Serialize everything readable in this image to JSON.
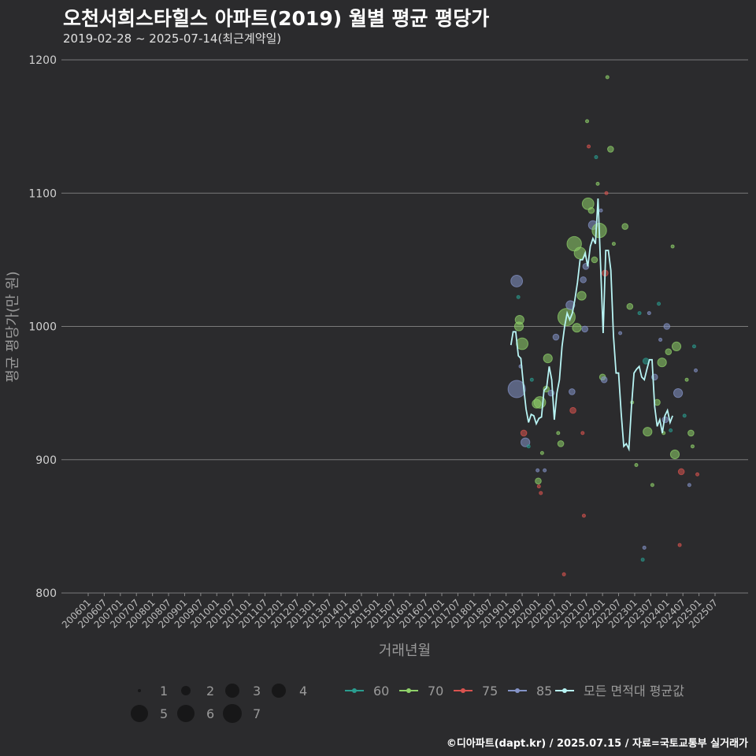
{
  "title": "오천서희스타힐스 아파트(2019) 월별 평균 평당가",
  "subtitle": "2019-02-28 ~ 2025-07-14(최근계약일)",
  "footer": "©디아파트(dapt.kr) / 2025.07.15 / 자료=국토교통부 실거래가",
  "colors": {
    "bg": "#2b2b2d",
    "grid": "#7a7a7a",
    "s60": "#2a9d8f",
    "s70": "#8fd16a",
    "s75": "#d9534f",
    "s85": "#8493c7",
    "avg": "#b8f4f4"
  },
  "chart_data": {
    "type": "scatter",
    "xlabel": "거래년월",
    "ylabel": "평균 평당가(만 원)",
    "ylim": [
      800,
      1200
    ],
    "yticks": [
      800,
      900,
      1000,
      1100,
      1200
    ],
    "xlim": [
      2005.75,
      2026.0
    ],
    "xticks": [
      "200601",
      "200607",
      "200701",
      "200707",
      "200801",
      "200807",
      "200901",
      "200907",
      "201001",
      "201007",
      "201101",
      "201107",
      "201201",
      "201207",
      "201301",
      "201307",
      "201401",
      "201407",
      "201501",
      "201507",
      "201601",
      "201607",
      "201701",
      "201707",
      "201801",
      "201807",
      "201901",
      "201907",
      "202001",
      "202007",
      "202101",
      "202107",
      "202201",
      "202207",
      "202301",
      "202307",
      "202401",
      "202407",
      "202501",
      "202507"
    ],
    "size_legend": [
      1,
      2,
      3,
      4,
      5,
      6,
      7
    ],
    "series_legend": [
      {
        "name": "60",
        "color_key": "s60"
      },
      {
        "name": "70",
        "color_key": "s70"
      },
      {
        "name": "75",
        "color_key": "s75"
      },
      {
        "name": "85",
        "color_key": "s85"
      },
      {
        "name": "모든 면적대 평균값",
        "color_key": "avg"
      }
    ],
    "points": [
      {
        "x": 2019.33,
        "y": 1034,
        "area": "85",
        "n": 4
      },
      {
        "x": 2019.38,
        "y": 1022,
        "area": "60",
        "n": 1
      },
      {
        "x": 2019.42,
        "y": 1005,
        "area": "70",
        "n": 3
      },
      {
        "x": 2019.4,
        "y": 1000,
        "area": "70",
        "n": 3
      },
      {
        "x": 2019.5,
        "y": 987,
        "area": "70",
        "n": 4
      },
      {
        "x": 2019.33,
        "y": 953,
        "area": "85",
        "n": 6
      },
      {
        "x": 2019.45,
        "y": 970,
        "area": "85",
        "n": 1
      },
      {
        "x": 2019.55,
        "y": 920,
        "area": "75",
        "n": 2
      },
      {
        "x": 2019.6,
        "y": 913,
        "area": "85",
        "n": 3
      },
      {
        "x": 2019.7,
        "y": 910,
        "area": "60",
        "n": 1
      },
      {
        "x": 2019.8,
        "y": 960,
        "area": "60",
        "n": 1
      },
      {
        "x": 2019.95,
        "y": 942,
        "area": "70",
        "n": 3
      },
      {
        "x": 2020.05,
        "y": 943,
        "area": "70",
        "n": 4
      },
      {
        "x": 2020.0,
        "y": 884,
        "area": "70",
        "n": 2
      },
      {
        "x": 2019.98,
        "y": 892,
        "area": "85",
        "n": 1
      },
      {
        "x": 2020.02,
        "y": 880,
        "area": "75",
        "n": 1
      },
      {
        "x": 2020.08,
        "y": 875,
        "area": "75",
        "n": 1
      },
      {
        "x": 2020.12,
        "y": 905,
        "area": "70",
        "n": 1
      },
      {
        "x": 2020.2,
        "y": 892,
        "area": "85",
        "n": 1
      },
      {
        "x": 2020.25,
        "y": 953,
        "area": "70",
        "n": 2
      },
      {
        "x": 2020.3,
        "y": 976,
        "area": "70",
        "n": 3
      },
      {
        "x": 2020.4,
        "y": 950,
        "area": "85",
        "n": 2
      },
      {
        "x": 2020.55,
        "y": 992,
        "area": "85",
        "n": 2
      },
      {
        "x": 2020.62,
        "y": 920,
        "area": "70",
        "n": 1
      },
      {
        "x": 2020.7,
        "y": 912,
        "area": "70",
        "n": 2
      },
      {
        "x": 2020.8,
        "y": 814,
        "area": "75",
        "n": 1
      },
      {
        "x": 2020.88,
        "y": 1007,
        "area": "70",
        "n": 6
      },
      {
        "x": 2021.0,
        "y": 1016,
        "area": "85",
        "n": 3
      },
      {
        "x": 2021.05,
        "y": 951,
        "area": "85",
        "n": 2
      },
      {
        "x": 2021.08,
        "y": 937,
        "area": "75",
        "n": 2
      },
      {
        "x": 2021.12,
        "y": 1062,
        "area": "70",
        "n": 5
      },
      {
        "x": 2021.2,
        "y": 999,
        "area": "70",
        "n": 3
      },
      {
        "x": 2021.3,
        "y": 1055,
        "area": "70",
        "n": 4
      },
      {
        "x": 2021.35,
        "y": 1023,
        "area": "70",
        "n": 3
      },
      {
        "x": 2021.4,
        "y": 1035,
        "area": "85",
        "n": 2
      },
      {
        "x": 2021.38,
        "y": 920,
        "area": "75",
        "n": 1
      },
      {
        "x": 2021.42,
        "y": 858,
        "area": "75",
        "n": 1
      },
      {
        "x": 2021.45,
        "y": 998,
        "area": "85",
        "n": 2
      },
      {
        "x": 2021.48,
        "y": 1045,
        "area": "85",
        "n": 2
      },
      {
        "x": 2021.52,
        "y": 1154,
        "area": "70",
        "n": 1
      },
      {
        "x": 2021.57,
        "y": 1135,
        "area": "75",
        "n": 1
      },
      {
        "x": 2021.55,
        "y": 1092,
        "area": "70",
        "n": 4
      },
      {
        "x": 2021.65,
        "y": 1087,
        "area": "70",
        "n": 2
      },
      {
        "x": 2021.7,
        "y": 1076,
        "area": "85",
        "n": 3
      },
      {
        "x": 2021.75,
        "y": 1050,
        "area": "70",
        "n": 2
      },
      {
        "x": 2021.8,
        "y": 1127,
        "area": "60",
        "n": 1
      },
      {
        "x": 2021.85,
        "y": 1107,
        "area": "70",
        "n": 1
      },
      {
        "x": 2021.9,
        "y": 1072,
        "area": "70",
        "n": 5
      },
      {
        "x": 2021.95,
        "y": 1087,
        "area": "85",
        "n": 1
      },
      {
        "x": 2022.0,
        "y": 962,
        "area": "70",
        "n": 2
      },
      {
        "x": 2022.05,
        "y": 960,
        "area": "85",
        "n": 2
      },
      {
        "x": 2022.08,
        "y": 1040,
        "area": "75",
        "n": 2
      },
      {
        "x": 2022.12,
        "y": 1100,
        "area": "75",
        "n": 1
      },
      {
        "x": 2022.15,
        "y": 1187,
        "area": "70",
        "n": 1
      },
      {
        "x": 2022.25,
        "y": 1133,
        "area": "70",
        "n": 2
      },
      {
        "x": 2022.35,
        "y": 1062,
        "area": "70",
        "n": 1
      },
      {
        "x": 2022.55,
        "y": 995,
        "area": "85",
        "n": 1
      },
      {
        "x": 2022.7,
        "y": 1075,
        "area": "70",
        "n": 2
      },
      {
        "x": 2022.85,
        "y": 1015,
        "area": "70",
        "n": 2
      },
      {
        "x": 2022.92,
        "y": 943,
        "area": "70",
        "n": 1
      },
      {
        "x": 2023.05,
        "y": 896,
        "area": "70",
        "n": 1
      },
      {
        "x": 2023.15,
        "y": 1010,
        "area": "60",
        "n": 1
      },
      {
        "x": 2023.25,
        "y": 825,
        "area": "60",
        "n": 1
      },
      {
        "x": 2023.3,
        "y": 834,
        "area": "85",
        "n": 1
      },
      {
        "x": 2023.35,
        "y": 974,
        "area": "60",
        "n": 2
      },
      {
        "x": 2023.4,
        "y": 921,
        "area": "70",
        "n": 3
      },
      {
        "x": 2023.45,
        "y": 1010,
        "area": "85",
        "n": 1
      },
      {
        "x": 2023.55,
        "y": 881,
        "area": "70",
        "n": 1
      },
      {
        "x": 2023.62,
        "y": 962,
        "area": "85",
        "n": 2
      },
      {
        "x": 2023.7,
        "y": 943,
        "area": "70",
        "n": 2
      },
      {
        "x": 2023.75,
        "y": 1017,
        "area": "60",
        "n": 1
      },
      {
        "x": 2023.8,
        "y": 990,
        "area": "85",
        "n": 1
      },
      {
        "x": 2023.85,
        "y": 973,
        "area": "70",
        "n": 3
      },
      {
        "x": 2023.9,
        "y": 920,
        "area": "70",
        "n": 1
      },
      {
        "x": 2023.95,
        "y": 930,
        "area": "85",
        "n": 2
      },
      {
        "x": 2024.0,
        "y": 1000,
        "area": "85",
        "n": 2
      },
      {
        "x": 2024.05,
        "y": 981,
        "area": "70",
        "n": 2
      },
      {
        "x": 2024.12,
        "y": 922,
        "area": "60",
        "n": 1
      },
      {
        "x": 2024.18,
        "y": 1060,
        "area": "70",
        "n": 1
      },
      {
        "x": 2024.25,
        "y": 904,
        "area": "70",
        "n": 3
      },
      {
        "x": 2024.3,
        "y": 985,
        "area": "70",
        "n": 3
      },
      {
        "x": 2024.35,
        "y": 950,
        "area": "85",
        "n": 3
      },
      {
        "x": 2024.4,
        "y": 836,
        "area": "75",
        "n": 1
      },
      {
        "x": 2024.45,
        "y": 891,
        "area": "75",
        "n": 2
      },
      {
        "x": 2024.55,
        "y": 933,
        "area": "60",
        "n": 1
      },
      {
        "x": 2024.62,
        "y": 960,
        "area": "70",
        "n": 1
      },
      {
        "x": 2024.7,
        "y": 881,
        "area": "85",
        "n": 1
      },
      {
        "x": 2024.75,
        "y": 920,
        "area": "70",
        "n": 2
      },
      {
        "x": 2024.8,
        "y": 910,
        "area": "70",
        "n": 1
      },
      {
        "x": 2024.85,
        "y": 985,
        "area": "60",
        "n": 1
      },
      {
        "x": 2024.9,
        "y": 967,
        "area": "85",
        "n": 1
      },
      {
        "x": 2024.95,
        "y": 889,
        "area": "75",
        "n": 1
      }
    ],
    "average_line": [
      [
        2019.15,
        986
      ],
      [
        2019.22,
        996
      ],
      [
        2019.3,
        996
      ],
      [
        2019.38,
        978
      ],
      [
        2019.46,
        976
      ],
      [
        2019.54,
        956
      ],
      [
        2019.62,
        938
      ],
      [
        2019.7,
        928
      ],
      [
        2019.78,
        934
      ],
      [
        2019.86,
        933
      ],
      [
        2019.94,
        927
      ],
      [
        2020.02,
        931
      ],
      [
        2020.1,
        932
      ],
      [
        2020.18,
        952
      ],
      [
        2020.26,
        954
      ],
      [
        2020.34,
        970
      ],
      [
        2020.42,
        960
      ],
      [
        2020.5,
        930
      ],
      [
        2020.58,
        950
      ],
      [
        2020.66,
        960
      ],
      [
        2020.74,
        985
      ],
      [
        2020.82,
        1000
      ],
      [
        2020.9,
        1010
      ],
      [
        2020.98,
        1005
      ],
      [
        2021.06,
        1010
      ],
      [
        2021.14,
        1020
      ],
      [
        2021.22,
        1033
      ],
      [
        2021.3,
        1050
      ],
      [
        2021.38,
        1050
      ],
      [
        2021.46,
        1055
      ],
      [
        2021.54,
        1045
      ],
      [
        2021.62,
        1060
      ],
      [
        2021.7,
        1066
      ],
      [
        2021.78,
        1062
      ],
      [
        2021.86,
        1096
      ],
      [
        2021.94,
        1045
      ],
      [
        2022.02,
        995
      ],
      [
        2022.1,
        1057
      ],
      [
        2022.18,
        1057
      ],
      [
        2022.26,
        1042
      ],
      [
        2022.34,
        993
      ],
      [
        2022.42,
        965
      ],
      [
        2022.5,
        965
      ],
      [
        2022.58,
        935
      ],
      [
        2022.66,
        910
      ],
      [
        2022.74,
        912
      ],
      [
        2022.82,
        908
      ],
      [
        2022.9,
        940
      ],
      [
        2022.98,
        965
      ],
      [
        2023.06,
        968
      ],
      [
        2023.14,
        970
      ],
      [
        2023.22,
        962
      ],
      [
        2023.3,
        960
      ],
      [
        2023.38,
        968
      ],
      [
        2023.46,
        975
      ],
      [
        2023.54,
        975
      ],
      [
        2023.62,
        940
      ],
      [
        2023.7,
        925
      ],
      [
        2023.78,
        930
      ],
      [
        2023.86,
        920
      ],
      [
        2023.94,
        933
      ],
      [
        2024.02,
        937
      ],
      [
        2024.1,
        928
      ],
      [
        2024.18,
        933
      ]
    ]
  }
}
